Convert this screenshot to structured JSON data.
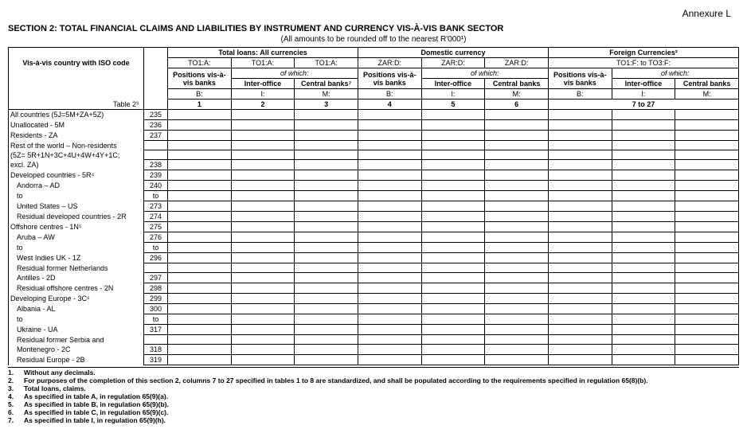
{
  "annex": "Annexure L",
  "section_title": "SECTION 2: TOTAL FINANCIAL CLAIMS AND LIABILITIES BY INSTRUMENT AND CURRENCY VIS-À-VIS BANK SECTOR",
  "subtitle": "(All amounts to be rounded off to the nearest R'000¹)",
  "groupA": "Total loans: All currencies",
  "groupB": "Domestic currency",
  "groupC": "Foreign Currencies²",
  "subA1": "TO1:A:",
  "subA2": "TO1:A:",
  "subA3": "TO1:A:",
  "subB1": "ZAR:D:",
  "subB2": "ZAR:D:",
  "subB3": "ZAR:D:",
  "subC": "TO1:F: to TO3:F:",
  "vis_label": "Vis-à-vis country with ISO code",
  "pos_label": "Positions vis-à-vis banks",
  "pos_label2": "Positions vis-à-vis banks",
  "of_which": "of which:",
  "inter_office": "Inter-office",
  "central_banks": "Central banks⁷",
  "central_banks_plain": "Central banks",
  "B": "B:",
  "I": "I:",
  "M": "M:",
  "table_ref": "Table 2³",
  "c1": "1",
  "c2": "2",
  "c3": "3",
  "c4": "4",
  "c5": "5",
  "c6": "6",
  "c7": "7 to 27",
  "rows": [
    {
      "label": "All countries (5J=5M+ZA+5Z)",
      "code": "235",
      "indent": 0
    },
    {
      "label": "Unallocated - 5M",
      "code": "236",
      "indent": 0
    },
    {
      "label": "Residents - ZA",
      "code": "237",
      "indent": 0
    },
    {
      "label": "Rest of the world – Non-residents",
      "code": "",
      "indent": 0,
      "multi": 1
    },
    {
      "label": "(5Z= 5R+1N+3C+4U+4W+4Y+1C;",
      "code": "",
      "indent": 0,
      "multi": 1
    },
    {
      "label": "excl. ZA)",
      "code": "238",
      "indent": 0
    },
    {
      "label": "Developed countries - 5R⁴",
      "code": "239",
      "indent": 0
    },
    {
      "label": "Andorra – AD",
      "code": "240",
      "indent": 1
    },
    {
      "label": "to",
      "code": "to",
      "indent": 1
    },
    {
      "label": "United States – US",
      "code": "273",
      "indent": 1
    },
    {
      "label": "Residual developed countries - 2R",
      "code": "274",
      "indent": 1
    },
    {
      "label": "Offshore centres - 1N⁵",
      "code": "275",
      "indent": 0
    },
    {
      "label": "Aruba – AW",
      "code": "276",
      "indent": 1
    },
    {
      "label": "to",
      "code": "to",
      "indent": 1
    },
    {
      "label": "West Indies UK - 1Z",
      "code": "296",
      "indent": 1
    },
    {
      "label": "Residual former Netherlands",
      "code": "",
      "indent": 1,
      "multi": 1
    },
    {
      "label": "Antilles - 2D",
      "code": "297",
      "indent": 1
    },
    {
      "label": "Residual offshore centres - 2N",
      "code": "298",
      "indent": 1
    },
    {
      "label": "Developing Europe - 3C⁶",
      "code": "299",
      "indent": 0
    },
    {
      "label": "Albania - AL",
      "code": "300",
      "indent": 1
    },
    {
      "label": "to",
      "code": "to",
      "indent": 1
    },
    {
      "label": "Ukraine - UA",
      "code": "317",
      "indent": 1
    },
    {
      "label": "Residual former Serbia and",
      "code": "",
      "indent": 1,
      "multi": 1
    },
    {
      "label": "Montenegro - 2C",
      "code": "318",
      "indent": 1
    },
    {
      "label": "Residual Europe - 2B",
      "code": "319",
      "indent": 1
    }
  ],
  "footnotes": [
    {
      "n": "1.",
      "t": "Without any decimals."
    },
    {
      "n": "2.",
      "t": "For purposes of the completion of this section 2, columns 7 to 27 specified in tables 1 to 8 are standardized, and shall be populated according to the requirements specified in regulation 65(8)(b)."
    },
    {
      "n": "3.",
      "t": "Total loans, claims."
    },
    {
      "n": "4.",
      "t": "As specified in table A, in regulation 65(9)(a)."
    },
    {
      "n": "5.",
      "t": "As specified in table B, in regulation 65(9)(b)."
    },
    {
      "n": "6.",
      "t": "As specified in table C, in regulation 65(9)(c)."
    },
    {
      "n": "7.",
      "t": "As specified in table I, in regulation 65(9)(h)."
    }
  ]
}
